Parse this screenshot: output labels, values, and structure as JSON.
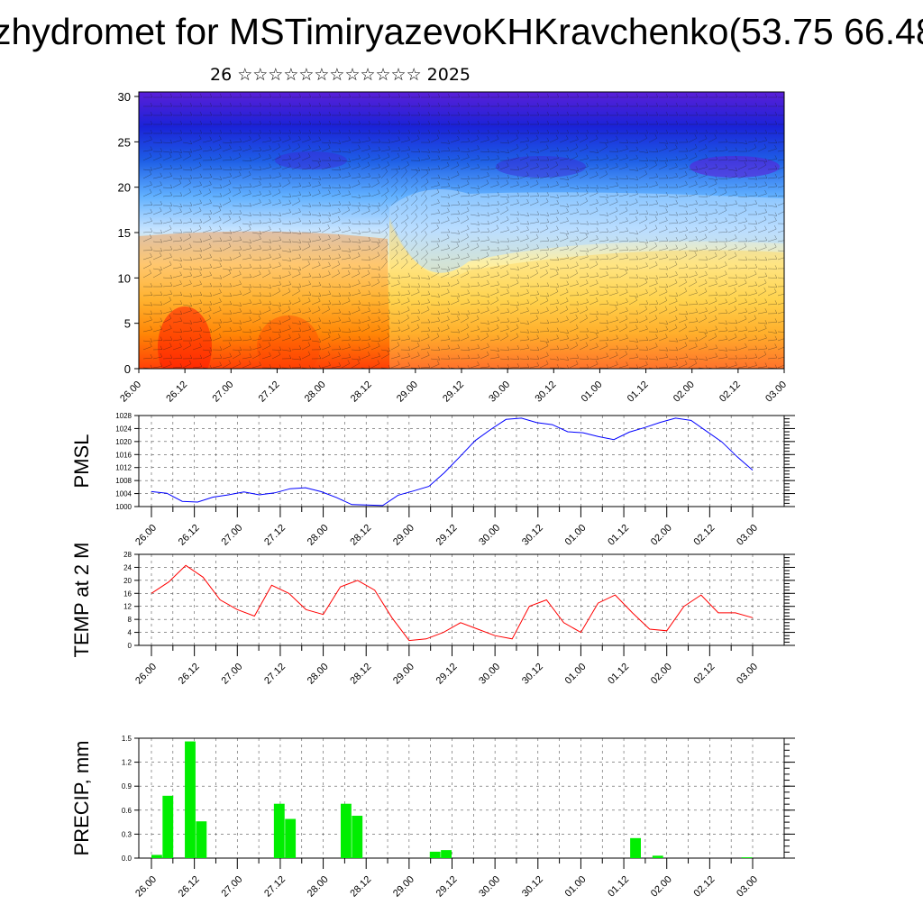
{
  "header": {
    "title": "zhydromet for MSTimiryazevoKHKravchenko(53.75 66.48",
    "subtitle": "26 ☆☆☆☆☆☆☆☆☆☆☆☆ 2025"
  },
  "colors": {
    "pmsl_line": "#0000ff",
    "temp_line": "#ff0000",
    "precip_bar": "#00ee00"
  },
  "chart_data": [
    {
      "type": "heatmap",
      "title": "",
      "xlabel": "",
      "ylabel": "",
      "x_tick_labels": [
        "26.00",
        "26.12",
        "27.00",
        "27.12",
        "28.00",
        "28.12",
        "29.00",
        "29.12",
        "30.00",
        "30.12",
        "01.00",
        "01.12",
        "02.00",
        "02.12",
        "03.00"
      ],
      "y_ticks": [
        0,
        5,
        10,
        15,
        20,
        25,
        30
      ],
      "ylim": [
        0,
        30.5
      ],
      "overlay": "wind barbs",
      "colormap": [
        "#ff2000",
        "#ff8c00",
        "#ffd040",
        "#fff0a0",
        "#c8e4ff",
        "#60b0ff",
        "#1e5fe6",
        "#1a22d8",
        "#5a1fd8"
      ]
    },
    {
      "type": "line",
      "ylabel": "PMSL",
      "ylim": [
        1000,
        1028
      ],
      "y_ticks": [
        1000,
        1004,
        1008,
        1012,
        1016,
        1020,
        1024,
        1028
      ],
      "x_tick_labels": [
        "26.00",
        "26.12",
        "27.00",
        "27.12",
        "28.00",
        "28.12",
        "29.00",
        "29.12",
        "30.00",
        "30.12",
        "01.00",
        "01.12",
        "02.00",
        "02.12",
        "03.00"
      ],
      "series": [
        {
          "values": [
            1004.6,
            1004.1,
            1001.6,
            1001.4,
            1002.9,
            1003.6,
            1004.5,
            1003.6,
            1004.2,
            1005.5,
            1005.8,
            1004.6,
            1002.8,
            1000.6,
            1000.5,
            1000.3,
            1003.5,
            1004.8,
            1006.2,
            1010.4,
            1015.3,
            1020.3,
            1023.7,
            1026.8,
            1027.2,
            1025.8,
            1025.2,
            1023.0,
            1022.7,
            1021.5,
            1020.6,
            1022.9,
            1024.3,
            1025.9,
            1027.2,
            1026.5,
            1023.2,
            1019.9,
            1015.3,
            1011.2
          ]
        }
      ]
    },
    {
      "type": "line",
      "ylabel": "TEMP at 2 M",
      "ylim": [
        0,
        28
      ],
      "y_ticks": [
        0,
        4,
        8,
        12,
        16,
        20,
        24,
        28
      ],
      "x_tick_labels": [
        "26.00",
        "26.12",
        "27.00",
        "27.12",
        "28.00",
        "28.12",
        "29.00",
        "29.12",
        "30.00",
        "30.12",
        "01.00",
        "01.12",
        "02.00",
        "02.12",
        "03.00"
      ],
      "series": [
        {
          "values": [
            16,
            19.5,
            24.6,
            21,
            14,
            11,
            9,
            18.5,
            16,
            11,
            9.5,
            18,
            20,
            17,
            8.5,
            1.5,
            2,
            4,
            7,
            5,
            3,
            2,
            12,
            14,
            7,
            4,
            13,
            15.5,
            10,
            5,
            4.5,
            12,
            15.5,
            10,
            10,
            8.5
          ]
        }
      ]
    },
    {
      "type": "bar",
      "ylabel": "PRECIP, mm",
      "ylim": [
        0,
        1.5
      ],
      "y_ticks": [
        0.0,
        0.3,
        0.6,
        0.9,
        1.2,
        1.5
      ],
      "x_tick_labels": [
        "26.00",
        "26.12",
        "27.00",
        "27.12",
        "28.00",
        "28.12",
        "29.00",
        "29.12",
        "30.00",
        "30.12",
        "01.00",
        "01.12",
        "02.00",
        "02.12",
        "03.00"
      ],
      "series": [
        {
          "values": [
            0.04,
            0.78,
            0,
            1.46,
            0.46,
            0,
            0,
            0,
            0,
            0,
            0,
            0.68,
            0.49,
            0,
            0,
            0,
            0,
            0.68,
            0.53,
            0,
            0,
            0,
            0,
            0,
            0,
            0.08,
            0.1,
            0,
            0,
            0,
            0,
            0,
            0,
            0,
            0,
            0,
            0,
            0,
            0,
            0,
            0,
            0,
            0,
            0.25,
            0,
            0.03,
            0,
            0,
            0,
            0,
            0,
            0,
            0,
            0.01
          ]
        }
      ]
    }
  ]
}
